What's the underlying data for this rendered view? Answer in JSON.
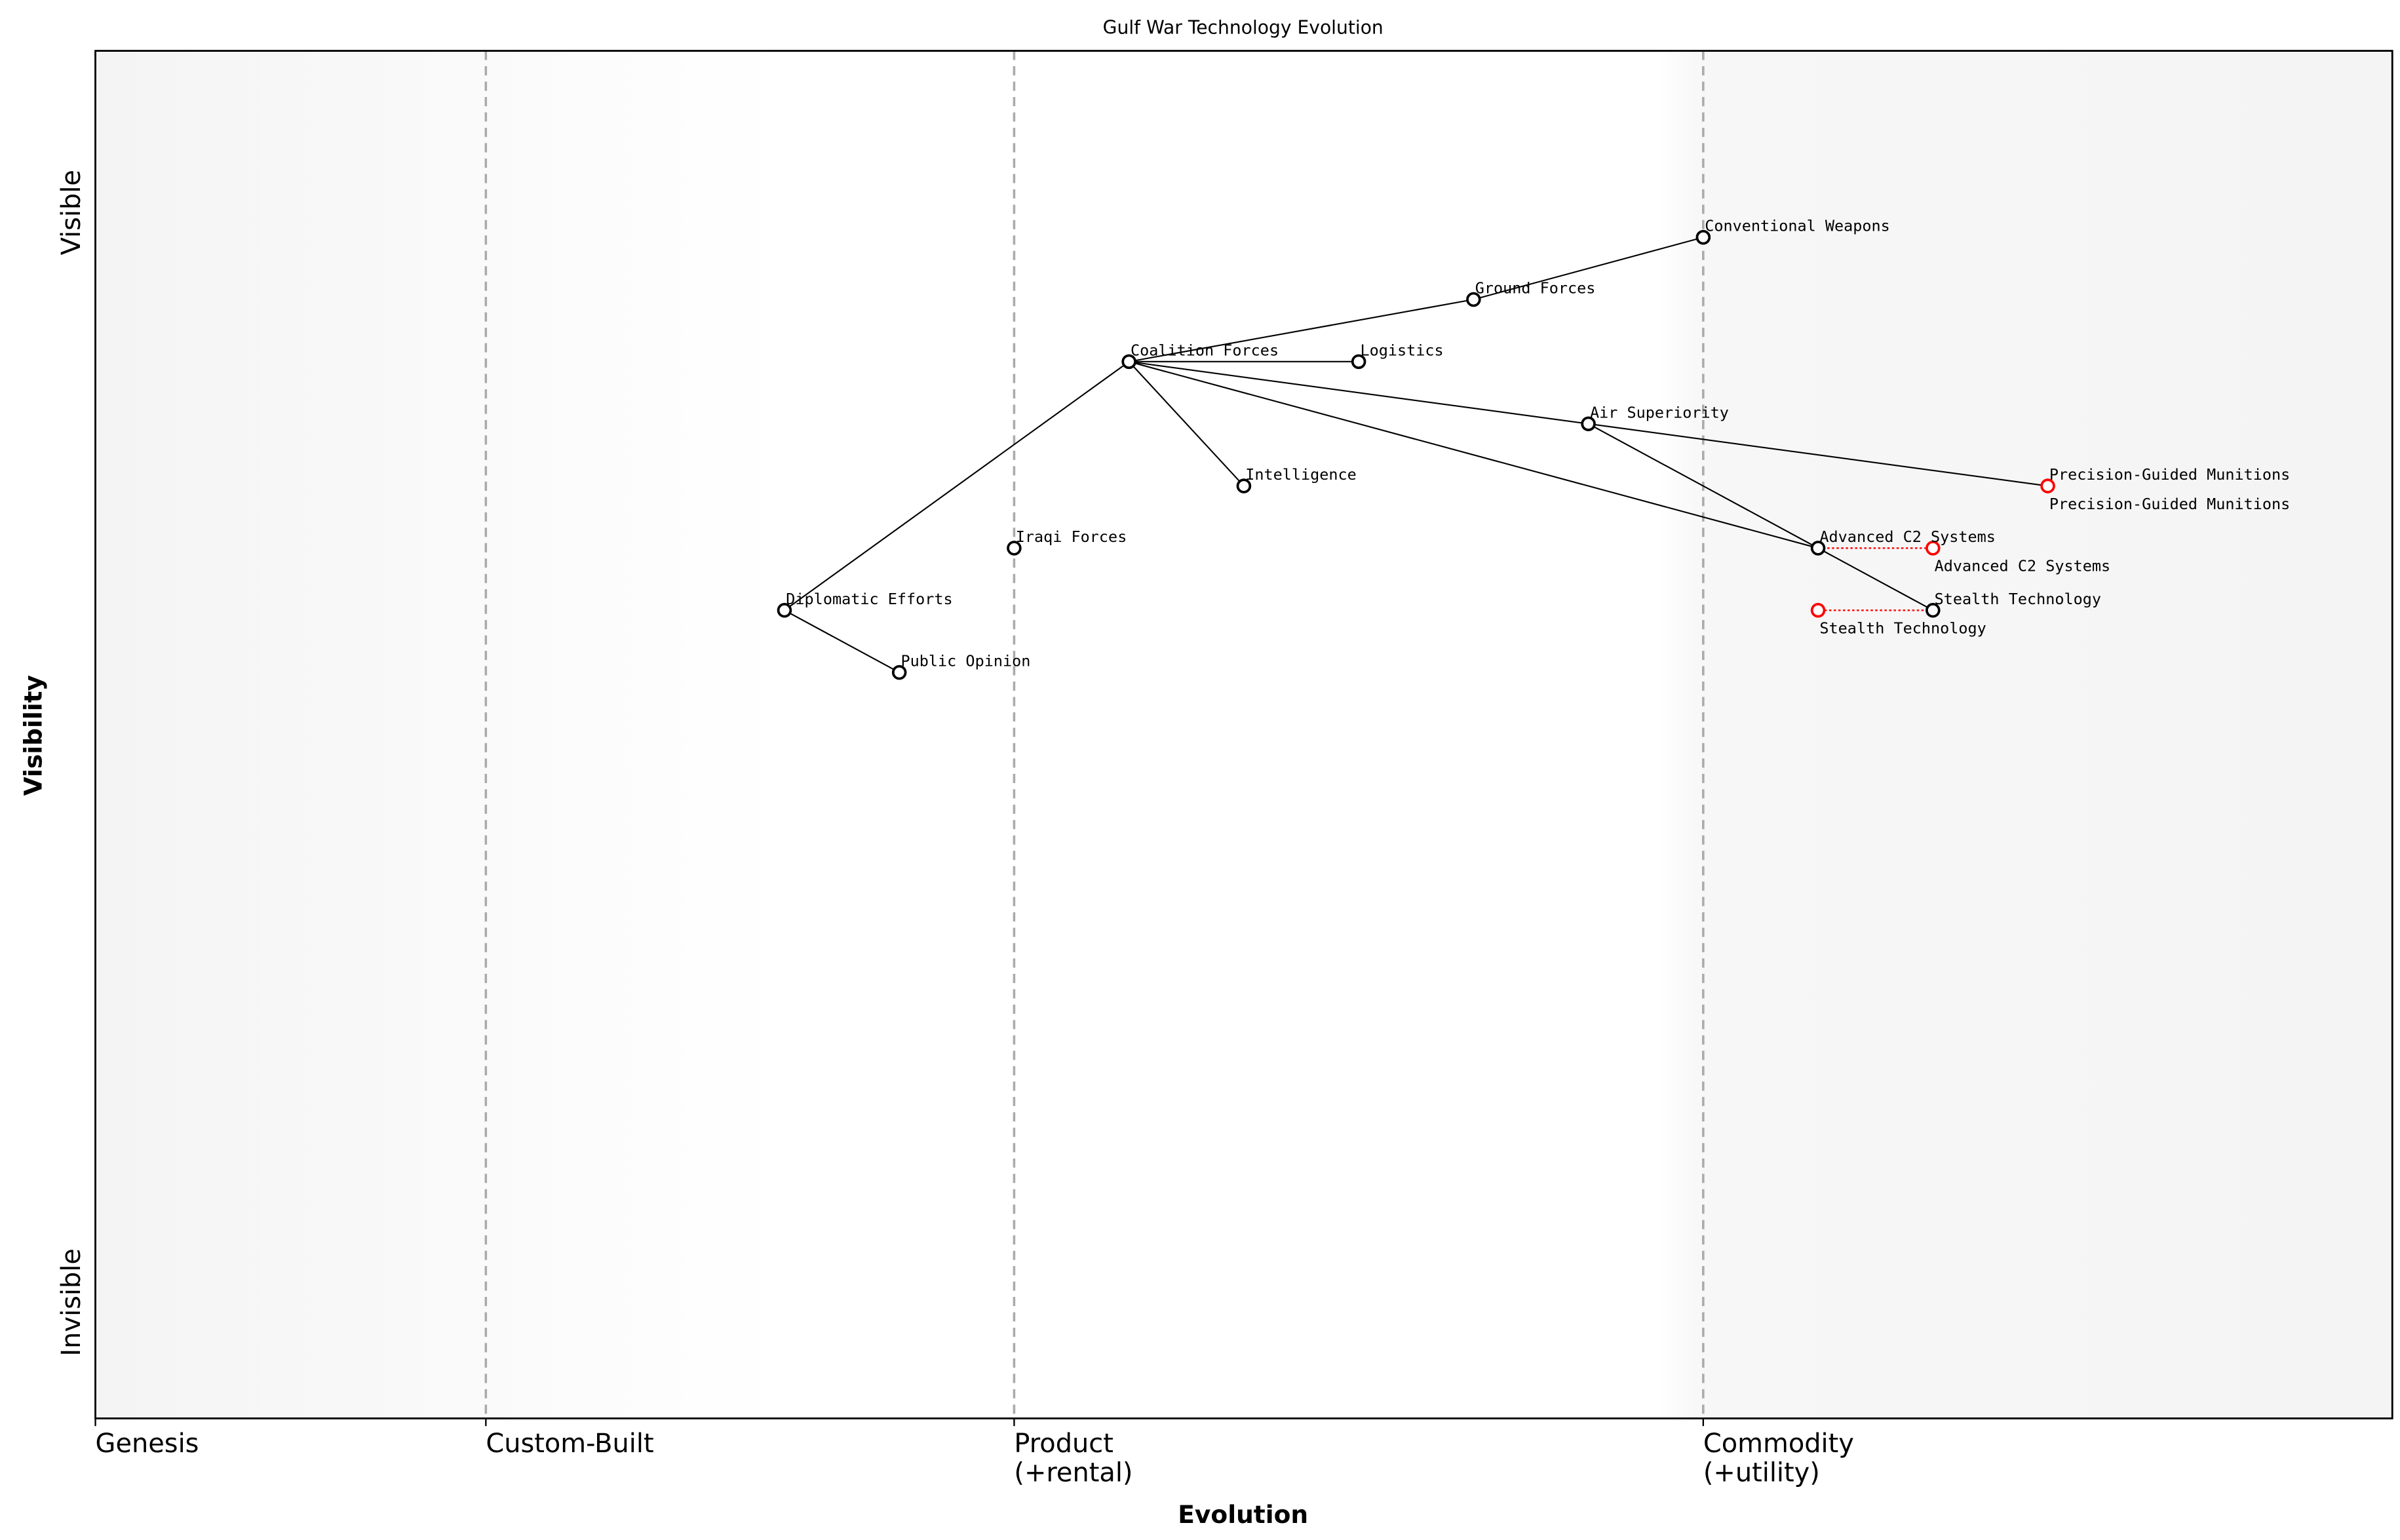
{
  "chart_data": {
    "type": "scatter",
    "title": "Gulf War Technology Evolution",
    "xlabel": "Evolution",
    "ylabel": "Visibility",
    "xlim": [
      0,
      1
    ],
    "ylim": [
      -0.05,
      1.05
    ],
    "x_ticks": [
      {
        "value": 0,
        "label": [
          "Genesis"
        ]
      },
      {
        "value": 0.17,
        "label": [
          "Custom-Built"
        ]
      },
      {
        "value": 0.4,
        "label": [
          "Product",
          "(+rental)"
        ]
      },
      {
        "value": 0.7,
        "label": [
          "Commodity",
          "(+utility)"
        ]
      }
    ],
    "y_ticks": [
      {
        "value": 0,
        "label": "Invisible"
      },
      {
        "value": 0.92,
        "label": "Visible"
      }
    ],
    "stage_boundaries": [
      0.17,
      0.4,
      0.7
    ],
    "components": [
      {
        "name": "Conventional Weapons",
        "evolution": 0.7,
        "visibility": 0.9
      },
      {
        "name": "Ground Forces",
        "evolution": 0.6,
        "visibility": 0.85
      },
      {
        "name": "Coalition Forces",
        "evolution": 0.45,
        "visibility": 0.8
      },
      {
        "name": "Logistics",
        "evolution": 0.55,
        "visibility": 0.8
      },
      {
        "name": "Air Superiority",
        "evolution": 0.65,
        "visibility": 0.75
      },
      {
        "name": "Intelligence",
        "evolution": 0.5,
        "visibility": 0.7
      },
      {
        "name": "Precision-Guided Munitions",
        "evolution": 0.85,
        "visibility": 0.7
      },
      {
        "name": "Iraqi Forces",
        "evolution": 0.4,
        "visibility": 0.65
      },
      {
        "name": "Advanced C2 Systems",
        "evolution": 0.75,
        "visibility": 0.65
      },
      {
        "name": "Diplomatic Efforts",
        "evolution": 0.3,
        "visibility": 0.6
      },
      {
        "name": "Stealth Technology",
        "evolution": 0.8,
        "visibility": 0.6
      },
      {
        "name": "Public Opinion",
        "evolution": 0.35,
        "visibility": 0.55
      }
    ],
    "evolved_components": [
      {
        "name": "Precision-Guided Munitions",
        "from": 0.85,
        "to": 0.85,
        "visibility": 0.7
      },
      {
        "name": "Advanced C2 Systems",
        "from": 0.75,
        "to": 0.8,
        "visibility": 0.65
      },
      {
        "name": "Stealth Technology",
        "from": 0.8,
        "to": 0.75,
        "visibility": 0.6
      }
    ],
    "links": [
      [
        "Coalition Forces",
        "Ground Forces"
      ],
      [
        "Ground Forces",
        "Conventional Weapons"
      ],
      [
        "Coalition Forces",
        "Logistics"
      ],
      [
        "Coalition Forces",
        "Intelligence"
      ],
      [
        "Coalition Forces",
        "Air Superiority"
      ],
      [
        "Coalition Forces",
        "Advanced C2 Systems"
      ],
      [
        "Air Superiority",
        "Precision-Guided Munitions"
      ],
      [
        "Air Superiority",
        "Stealth Technology"
      ],
      [
        "Diplomatic Efforts",
        "Coalition Forces"
      ],
      [
        "Diplomatic Efforts",
        "Public Opinion"
      ]
    ],
    "colors": {
      "component": "#000000",
      "evolved": "#ff0000",
      "boundary": "#aaaaaa",
      "background_edge": "#f5f5f5"
    },
    "grid": false,
    "legend": "none"
  }
}
